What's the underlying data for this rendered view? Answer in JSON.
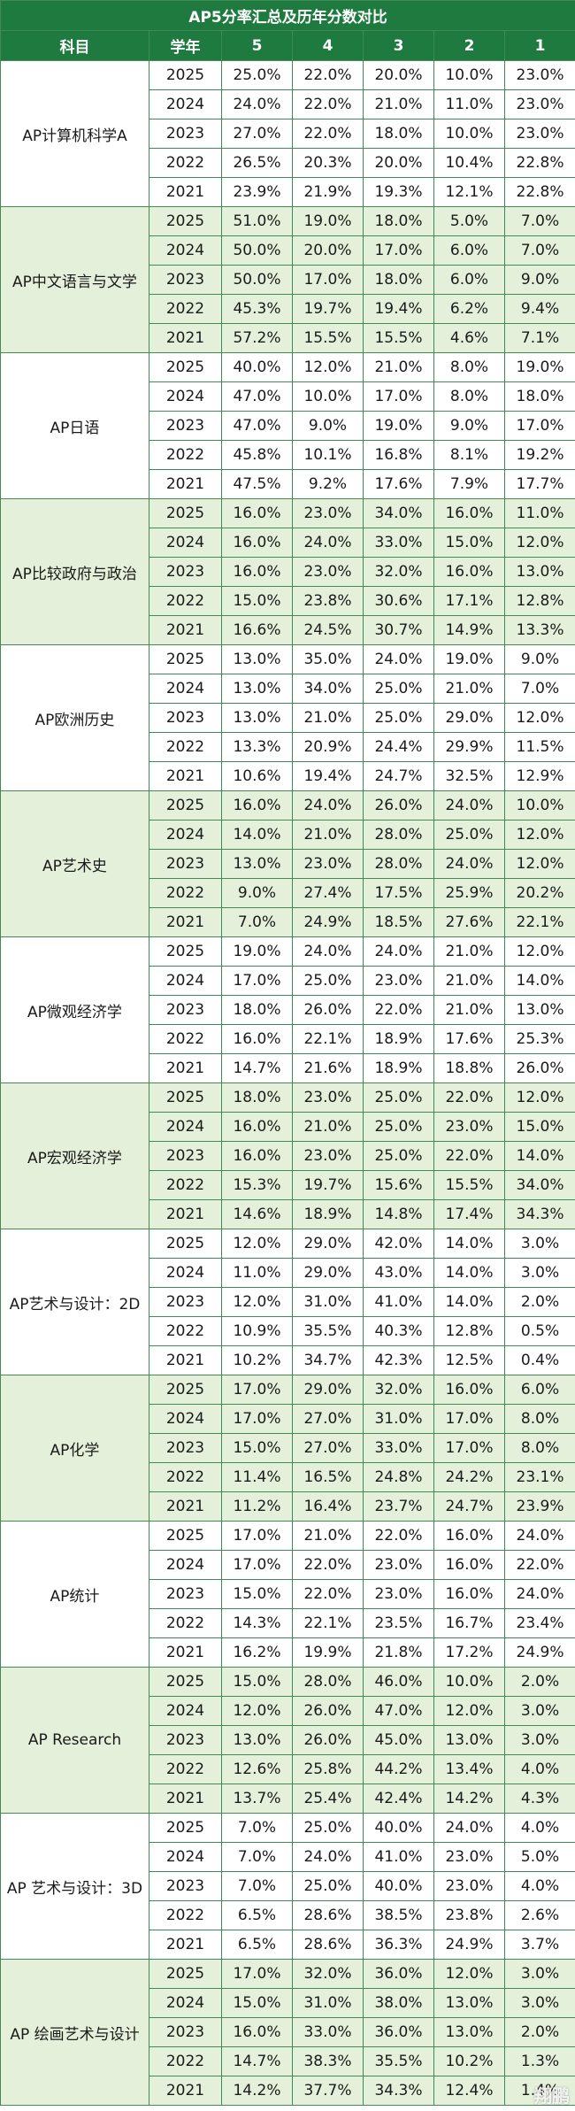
{
  "title": "AP5分率汇总及历年分数对比",
  "headers": [
    "科目",
    "学年",
    "5",
    "4",
    "3",
    "2",
    "1"
  ],
  "colors": {
    "header_bg": "#1e7a3e",
    "band_green": "#e4f0d9",
    "band_white": "#ffffff",
    "border": "#3f8a55"
  },
  "watermark": "翔鹏",
  "subjects": [
    {
      "name": "AP计算机科学A",
      "band": "white",
      "rows": [
        [
          "2025",
          "25.0%",
          "22.0%",
          "20.0%",
          "10.0%",
          "23.0%"
        ],
        [
          "2024",
          "24.0%",
          "22.0%",
          "21.0%",
          "11.0%",
          "23.0%"
        ],
        [
          "2023",
          "27.0%",
          "22.0%",
          "18.0%",
          "10.0%",
          "23.0%"
        ],
        [
          "2022",
          "26.5%",
          "20.3%",
          "20.0%",
          "10.4%",
          "22.8%"
        ],
        [
          "2021",
          "23.9%",
          "21.9%",
          "19.3%",
          "12.1%",
          "22.8%"
        ]
      ]
    },
    {
      "name": "AP中文语言与文学",
      "band": "green",
      "rows": [
        [
          "2025",
          "51.0%",
          "19.0%",
          "18.0%",
          "5.0%",
          "7.0%"
        ],
        [
          "2024",
          "50.0%",
          "20.0%",
          "17.0%",
          "6.0%",
          "7.0%"
        ],
        [
          "2023",
          "50.0%",
          "17.0%",
          "18.0%",
          "6.0%",
          "9.0%"
        ],
        [
          "2022",
          "45.3%",
          "19.7%",
          "19.4%",
          "6.2%",
          "9.4%"
        ],
        [
          "2021",
          "57.2%",
          "15.5%",
          "15.5%",
          "4.6%",
          "7.1%"
        ]
      ]
    },
    {
      "name": "AP日语",
      "band": "white",
      "rows": [
        [
          "2025",
          "40.0%",
          "12.0%",
          "21.0%",
          "8.0%",
          "19.0%"
        ],
        [
          "2024",
          "47.0%",
          "10.0%",
          "17.0%",
          "8.0%",
          "18.0%"
        ],
        [
          "2023",
          "47.0%",
          "9.0%",
          "19.0%",
          "9.0%",
          "17.0%"
        ],
        [
          "2022",
          "45.8%",
          "10.1%",
          "16.8%",
          "8.1%",
          "19.2%"
        ],
        [
          "2021",
          "47.5%",
          "9.2%",
          "17.6%",
          "7.9%",
          "17.7%"
        ]
      ]
    },
    {
      "name": "AP比较政府与政治",
      "band": "green",
      "rows": [
        [
          "2025",
          "16.0%",
          "23.0%",
          "34.0%",
          "16.0%",
          "11.0%"
        ],
        [
          "2024",
          "16.0%",
          "24.0%",
          "33.0%",
          "15.0%",
          "12.0%"
        ],
        [
          "2023",
          "16.0%",
          "23.0%",
          "32.0%",
          "16.0%",
          "13.0%"
        ],
        [
          "2022",
          "15.0%",
          "23.8%",
          "30.6%",
          "17.1%",
          "12.8%"
        ],
        [
          "2021",
          "16.6%",
          "24.5%",
          "30.7%",
          "14.9%",
          "13.3%"
        ]
      ]
    },
    {
      "name": "AP欧洲历史",
      "band": "white",
      "rows": [
        [
          "2025",
          "13.0%",
          "35.0%",
          "24.0%",
          "19.0%",
          "9.0%"
        ],
        [
          "2024",
          "13.0%",
          "34.0%",
          "25.0%",
          "21.0%",
          "7.0%"
        ],
        [
          "2023",
          "13.0%",
          "21.0%",
          "25.0%",
          "29.0%",
          "12.0%"
        ],
        [
          "2022",
          "13.3%",
          "20.9%",
          "24.4%",
          "29.9%",
          "11.5%"
        ],
        [
          "2021",
          "10.6%",
          "19.4%",
          "24.7%",
          "32.5%",
          "12.9%"
        ]
      ]
    },
    {
      "name": "AP艺术史",
      "band": "green",
      "rows": [
        [
          "2025",
          "16.0%",
          "24.0%",
          "26.0%",
          "24.0%",
          "10.0%"
        ],
        [
          "2024",
          "14.0%",
          "21.0%",
          "28.0%",
          "25.0%",
          "12.0%"
        ],
        [
          "2023",
          "13.0%",
          "23.0%",
          "28.0%",
          "24.0%",
          "12.0%"
        ],
        [
          "2022",
          "9.0%",
          "27.4%",
          "17.5%",
          "25.9%",
          "20.2%"
        ],
        [
          "2021",
          "7.0%",
          "24.9%",
          "18.5%",
          "27.6%",
          "22.1%"
        ]
      ]
    },
    {
      "name": "AP微观经济学",
      "band": "white",
      "rows": [
        [
          "2025",
          "19.0%",
          "24.0%",
          "24.0%",
          "21.0%",
          "12.0%"
        ],
        [
          "2024",
          "17.0%",
          "25.0%",
          "23.0%",
          "21.0%",
          "14.0%"
        ],
        [
          "2023",
          "18.0%",
          "26.0%",
          "22.0%",
          "21.0%",
          "13.0%"
        ],
        [
          "2022",
          "16.0%",
          "22.1%",
          "18.9%",
          "17.6%",
          "25.3%"
        ],
        [
          "2021",
          "14.7%",
          "21.6%",
          "18.9%",
          "18.8%",
          "26.0%"
        ]
      ]
    },
    {
      "name": "AP宏观经济学",
      "band": "green",
      "rows": [
        [
          "2025",
          "18.0%",
          "23.0%",
          "25.0%",
          "22.0%",
          "12.0%"
        ],
        [
          "2024",
          "16.0%",
          "21.0%",
          "25.0%",
          "23.0%",
          "15.0%"
        ],
        [
          "2023",
          "16.0%",
          "23.0%",
          "25.0%",
          "22.0%",
          "14.0%"
        ],
        [
          "2022",
          "15.3%",
          "19.7%",
          "15.6%",
          "15.5%",
          "34.0%"
        ],
        [
          "2021",
          "14.6%",
          "18.9%",
          "14.8%",
          "17.4%",
          "34.3%"
        ]
      ]
    },
    {
      "name": "AP艺术与设计：2D",
      "band": "white",
      "rows": [
        [
          "2025",
          "12.0%",
          "29.0%",
          "42.0%",
          "14.0%",
          "3.0%"
        ],
        [
          "2024",
          "11.0%",
          "29.0%",
          "43.0%",
          "14.0%",
          "3.0%"
        ],
        [
          "2023",
          "12.0%",
          "31.0%",
          "41.0%",
          "14.0%",
          "2.0%"
        ],
        [
          "2022",
          "10.9%",
          "35.5%",
          "40.3%",
          "12.8%",
          "0.5%"
        ],
        [
          "2021",
          "10.2%",
          "34.7%",
          "42.3%",
          "12.5%",
          "0.4%"
        ]
      ]
    },
    {
      "name": "AP化学",
      "band": "green",
      "rows": [
        [
          "2025",
          "17.0%",
          "29.0%",
          "32.0%",
          "16.0%",
          "6.0%"
        ],
        [
          "2024",
          "17.0%",
          "27.0%",
          "31.0%",
          "17.0%",
          "8.0%"
        ],
        [
          "2023",
          "15.0%",
          "27.0%",
          "33.0%",
          "17.0%",
          "8.0%"
        ],
        [
          "2022",
          "11.4%",
          "16.5%",
          "24.8%",
          "24.2%",
          "23.1%"
        ],
        [
          "2021",
          "11.2%",
          "16.4%",
          "23.7%",
          "24.7%",
          "23.9%"
        ]
      ]
    },
    {
      "name": "AP统计",
      "band": "white",
      "rows": [
        [
          "2025",
          "17.0%",
          "21.0%",
          "22.0%",
          "16.0%",
          "24.0%"
        ],
        [
          "2024",
          "17.0%",
          "22.0%",
          "23.0%",
          "16.0%",
          "22.0%"
        ],
        [
          "2023",
          "15.0%",
          "22.0%",
          "23.0%",
          "16.0%",
          "24.0%"
        ],
        [
          "2022",
          "14.3%",
          "22.1%",
          "23.5%",
          "16.7%",
          "23.4%"
        ],
        [
          "2021",
          "16.2%",
          "19.9%",
          "21.8%",
          "17.2%",
          "24.9%"
        ]
      ]
    },
    {
      "name": "AP Research",
      "band": "green",
      "rows": [
        [
          "2025",
          "15.0%",
          "28.0%",
          "46.0%",
          "10.0%",
          "2.0%"
        ],
        [
          "2024",
          "12.0%",
          "26.0%",
          "47.0%",
          "12.0%",
          "3.0%"
        ],
        [
          "2023",
          "13.0%",
          "26.0%",
          "45.0%",
          "13.0%",
          "3.0%"
        ],
        [
          "2022",
          "12.6%",
          "25.8%",
          "44.2%",
          "13.4%",
          "4.0%"
        ],
        [
          "2021",
          "13.7%",
          "25.4%",
          "42.4%",
          "14.2%",
          "4.3%"
        ]
      ]
    },
    {
      "name": "AP 艺术与设计：3D",
      "band": "white",
      "rows": [
        [
          "2025",
          "7.0%",
          "25.0%",
          "40.0%",
          "24.0%",
          "4.0%"
        ],
        [
          "2024",
          "7.0%",
          "24.0%",
          "41.0%",
          "23.0%",
          "5.0%"
        ],
        [
          "2023",
          "7.0%",
          "25.0%",
          "40.0%",
          "23.0%",
          "4.0%"
        ],
        [
          "2022",
          "6.5%",
          "28.6%",
          "38.5%",
          "23.8%",
          "2.6%"
        ],
        [
          "2021",
          "6.5%",
          "28.6%",
          "36.3%",
          "24.9%",
          "3.7%"
        ]
      ]
    },
    {
      "name": "AP 绘画艺术与设计",
      "band": "green",
      "rows": [
        [
          "2025",
          "17.0%",
          "32.0%",
          "36.0%",
          "12.0%",
          "3.0%"
        ],
        [
          "2024",
          "15.0%",
          "31.0%",
          "38.0%",
          "13.0%",
          "3.0%"
        ],
        [
          "2023",
          "16.0%",
          "33.0%",
          "36.0%",
          "13.0%",
          "2.0%"
        ],
        [
          "2022",
          "14.7%",
          "38.3%",
          "35.5%",
          "10.2%",
          "1.3%"
        ],
        [
          "2021",
          "14.2%",
          "37.7%",
          "34.3%",
          "12.4%",
          "1.4%"
        ]
      ]
    }
  ]
}
